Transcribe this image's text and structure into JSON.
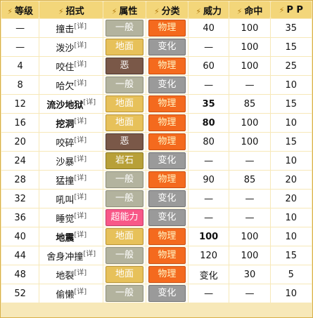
{
  "headers": {
    "level": "等级",
    "move": "招式",
    "type": "属性",
    "category": "分类",
    "power": "威力",
    "accuracy": "命中",
    "pp": "P P"
  },
  "rows": [
    {
      "level": "—",
      "move": "撞击",
      "sup": "[详]",
      "type": "一般",
      "type_key": "normal",
      "category": "物理",
      "cat_key": "phys",
      "power": "40",
      "accuracy": "100",
      "pp": "35",
      "bold_move": false,
      "bold_power": false
    },
    {
      "level": "—",
      "move": "泼沙",
      "sup": "[详]",
      "type": "地面",
      "type_key": "ground",
      "category": "变化",
      "cat_key": "status",
      "power": "—",
      "accuracy": "100",
      "pp": "15",
      "bold_move": false,
      "bold_power": false
    },
    {
      "level": "4",
      "move": "咬住",
      "sup": "[详]",
      "type": "恶",
      "type_key": "dark",
      "category": "物理",
      "cat_key": "phys",
      "power": "60",
      "accuracy": "100",
      "pp": "25",
      "bold_move": false,
      "bold_power": false
    },
    {
      "level": "8",
      "move": "哈欠",
      "sup": "[详]",
      "type": "一般",
      "type_key": "normal",
      "category": "变化",
      "cat_key": "status",
      "power": "—",
      "accuracy": "—",
      "pp": "10",
      "bold_move": false,
      "bold_power": false
    },
    {
      "level": "12",
      "move": "流沙地狱",
      "sup": "[详]",
      "type": "地面",
      "type_key": "ground",
      "category": "物理",
      "cat_key": "phys",
      "power": "35",
      "accuracy": "85",
      "pp": "15",
      "bold_move": true,
      "bold_power": true
    },
    {
      "level": "16",
      "move": "挖洞",
      "sup": "[详]",
      "type": "地面",
      "type_key": "ground",
      "category": "物理",
      "cat_key": "phys",
      "power": "80",
      "accuracy": "100",
      "pp": "10",
      "bold_move": true,
      "bold_power": true
    },
    {
      "level": "20",
      "move": "咬碎",
      "sup": "[详]",
      "type": "恶",
      "type_key": "dark",
      "category": "物理",
      "cat_key": "phys",
      "power": "80",
      "accuracy": "100",
      "pp": "15",
      "bold_move": false,
      "bold_power": false
    },
    {
      "level": "24",
      "move": "沙暴",
      "sup": "[详]",
      "type": "岩石",
      "type_key": "rock",
      "category": "变化",
      "cat_key": "status",
      "power": "—",
      "accuracy": "—",
      "pp": "10",
      "bold_move": false,
      "bold_power": false
    },
    {
      "level": "28",
      "move": "猛撞",
      "sup": "[详]",
      "type": "一般",
      "type_key": "normal",
      "category": "物理",
      "cat_key": "phys",
      "power": "90",
      "accuracy": "85",
      "pp": "20",
      "bold_move": false,
      "bold_power": false
    },
    {
      "level": "32",
      "move": "吼叫",
      "sup": "[详]",
      "type": "一般",
      "type_key": "normal",
      "category": "变化",
      "cat_key": "status",
      "power": "—",
      "accuracy": "—",
      "pp": "20",
      "bold_move": false,
      "bold_power": false
    },
    {
      "level": "36",
      "move": "睡觉",
      "sup": "[详]",
      "type": "超能力",
      "type_key": "psychic",
      "category": "变化",
      "cat_key": "status",
      "power": "—",
      "accuracy": "—",
      "pp": "10",
      "bold_move": false,
      "bold_power": false
    },
    {
      "level": "40",
      "move": "地震",
      "sup": "[详]",
      "type": "地面",
      "type_key": "ground",
      "category": "物理",
      "cat_key": "phys",
      "power": "100",
      "accuracy": "100",
      "pp": "10",
      "bold_move": true,
      "bold_power": true
    },
    {
      "level": "44",
      "move": "舍身冲撞",
      "sup": "[详]",
      "type": "一般",
      "type_key": "normal",
      "category": "物理",
      "cat_key": "phys",
      "power": "120",
      "accuracy": "100",
      "pp": "15",
      "bold_move": false,
      "bold_power": false
    },
    {
      "level": "48",
      "move": "地裂",
      "sup": "[详]",
      "type": "地面",
      "type_key": "ground",
      "category": "物理",
      "cat_key": "phys",
      "power": "变化",
      "accuracy": "30",
      "pp": "5",
      "bold_move": false,
      "bold_power": false
    },
    {
      "level": "52",
      "move": "偷懒",
      "sup": "[详]",
      "type": "一般",
      "type_key": "normal",
      "category": "变化",
      "cat_key": "status",
      "power": "—",
      "accuracy": "—",
      "pp": "10",
      "bold_move": false,
      "bold_power": false
    }
  ]
}
